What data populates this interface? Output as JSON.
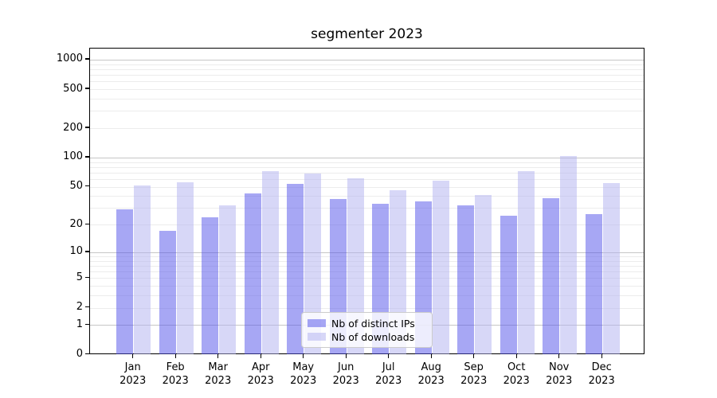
{
  "title": "segmenter 2023",
  "chart_data": {
    "type": "bar",
    "title": "segmenter 2023",
    "categories": [
      "Jan",
      "Feb",
      "Mar",
      "Apr",
      "May",
      "Jun",
      "Jul",
      "Aug",
      "Sep",
      "Oct",
      "Nov",
      "Dec"
    ],
    "category_year": "2023",
    "series": [
      {
        "name": "Nb of distinct IPs",
        "color": "rgba(79,79,233,0.5)",
        "values": [
          29,
          17,
          24,
          43,
          54,
          37,
          33,
          35,
          32,
          25,
          38,
          26
        ]
      },
      {
        "name": "Nb of downloads",
        "color": "rgba(175,175,239,0.5)",
        "values": [
          52,
          56,
          32,
          72,
          69,
          61,
          46,
          58,
          41,
          72,
          103,
          55
        ]
      }
    ],
    "y_scale": "log1p",
    "y_ticks": [
      0,
      1,
      2,
      5,
      10,
      20,
      50,
      100,
      200,
      500,
      1000
    ],
    "y_major_gridlines": [
      1,
      10,
      100,
      1000
    ],
    "ylim": [
      0,
      1300
    ],
    "grid": true,
    "legend_position": "lower center"
  },
  "colors": {
    "major_grid": "#c6c6c6",
    "minor_grid": "#ececec",
    "spine": "#000000",
    "legend_border": "#cccccc"
  }
}
